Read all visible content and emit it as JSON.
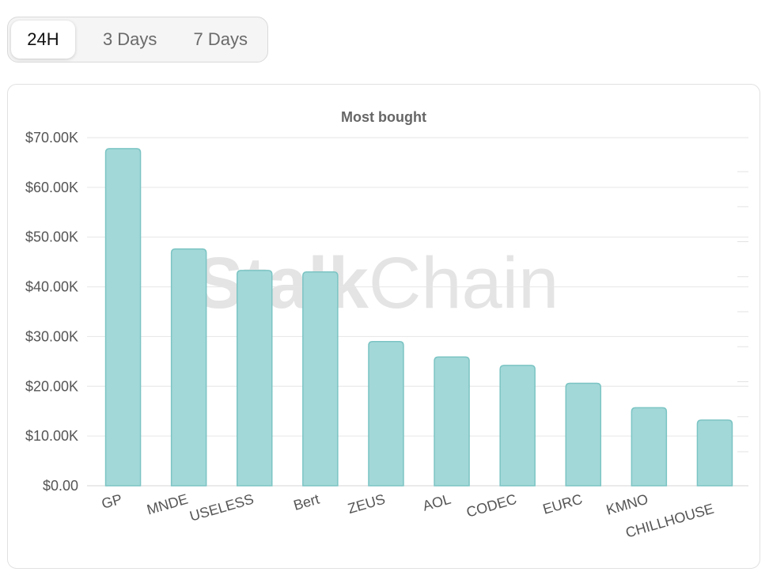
{
  "range_tabs": {
    "items": [
      {
        "label": "24H",
        "active": true
      },
      {
        "label": "3 Days",
        "active": false
      },
      {
        "label": "7 Days",
        "active": false
      }
    ]
  },
  "watermark": {
    "bold_part": "Stalk",
    "light_part": "Chain"
  },
  "chart_data": {
    "type": "bar",
    "title": "Most bought",
    "xlabel": "",
    "ylabel": "",
    "categories": [
      "GP",
      "MNDE",
      "USELESS",
      "Bert",
      "ZEUS",
      "AOL",
      "CODEC",
      "EURC",
      "KMNO",
      "CHILLHOUSE"
    ],
    "values": [
      67800,
      47600,
      43300,
      43000,
      29000,
      25900,
      24200,
      20600,
      15700,
      13200
    ],
    "ylim": [
      0,
      70000
    ],
    "yticks": [
      0,
      10000,
      20000,
      30000,
      40000,
      50000,
      60000,
      70000
    ],
    "ytick_labels": [
      "$0.00",
      "$10.00K",
      "$20.00K",
      "$30.00K",
      "$40.00K",
      "$50.00K",
      "$60.00K",
      "$70.00K"
    ],
    "grid": true,
    "legend": "none",
    "bar_fill": "#a3d8d8",
    "bar_stroke": "#7cc4c4"
  }
}
